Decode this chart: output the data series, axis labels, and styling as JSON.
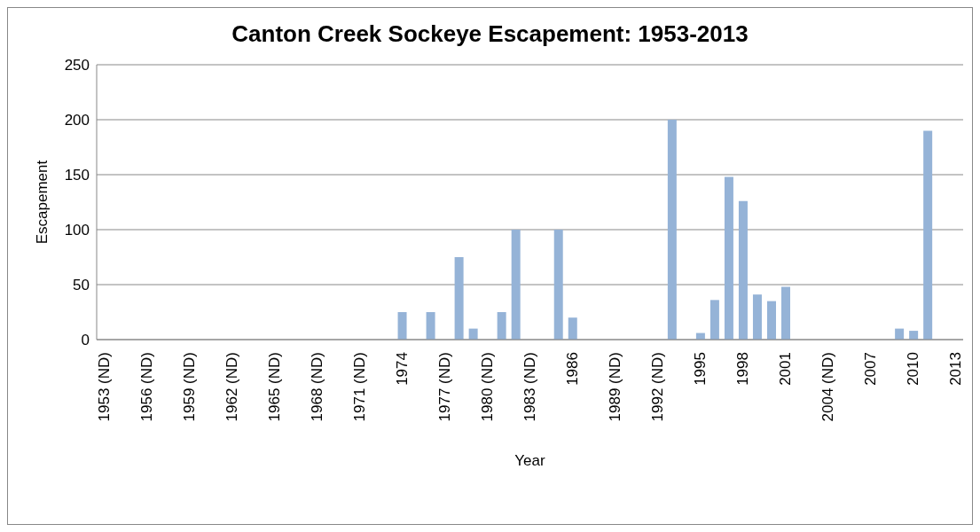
{
  "chart_data": {
    "type": "bar",
    "title": "Canton Creek Sockeye Escapement: 1953-2013",
    "xlabel": "Year",
    "ylabel": "Escapement",
    "categories": [
      "1953 (ND)",
      null,
      null,
      "1956 (ND)",
      null,
      null,
      "1959 (ND)",
      null,
      null,
      "1962 (ND)",
      null,
      null,
      "1965 (ND)",
      null,
      null,
      "1968 (ND)",
      null,
      null,
      "1971 (ND)",
      null,
      null,
      "1974",
      null,
      null,
      "1977 (ND)",
      null,
      null,
      "1980 (ND)",
      null,
      null,
      "1983 (ND)",
      null,
      null,
      "1986",
      null,
      null,
      "1989 (ND)",
      null,
      null,
      "1992 (ND)",
      null,
      null,
      "1995",
      null,
      null,
      "1998",
      null,
      null,
      "2001",
      null,
      null,
      "2004 (ND)",
      null,
      null,
      "2007",
      null,
      null,
      "2010",
      null,
      null,
      "2013"
    ],
    "values": [
      null,
      null,
      null,
      null,
      null,
      null,
      null,
      null,
      null,
      null,
      null,
      null,
      null,
      null,
      null,
      null,
      null,
      null,
      null,
      null,
      null,
      25,
      null,
      25,
      null,
      75,
      10,
      null,
      25,
      100,
      null,
      null,
      100,
      20,
      null,
      null,
      null,
      null,
      null,
      null,
      200,
      null,
      6,
      36,
      148,
      126,
      41,
      35,
      48,
      null,
      null,
      null,
      null,
      null,
      null,
      null,
      10,
      8,
      190,
      null,
      null
    ],
    "color": "#95b3d7",
    "ylim": [
      0,
      250
    ],
    "yticks": [
      0,
      50,
      100,
      150,
      200,
      250
    ],
    "grid": "y"
  }
}
